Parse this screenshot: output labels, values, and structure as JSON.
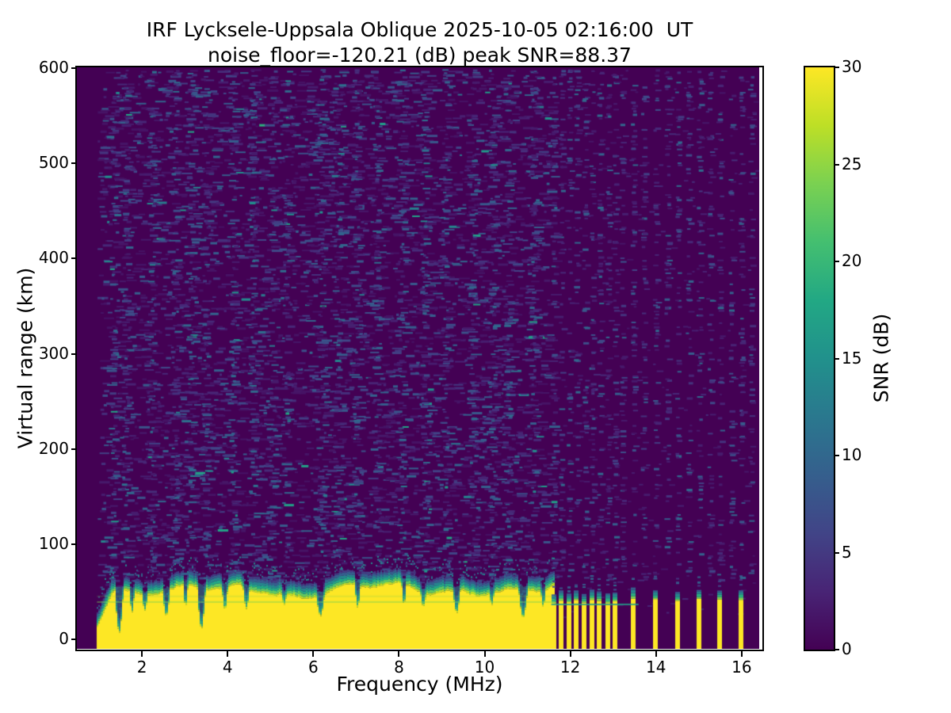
{
  "figure": {
    "title": "IRF Lycksele-Uppsala Oblique 2025-10-05 02:16:00  UT",
    "subtitle": "noise_floor=-120.21 (dB) peak SNR=88.37",
    "background": "#ffffff"
  },
  "chart_data": {
    "type": "heatmap",
    "title": "IRF Lycksele-Uppsala Oblique 2025-10-05 02:16:00  UT",
    "subtitle": "noise_floor=-120.21 (dB) peak SNR=88.37",
    "xlabel": "Frequency (MHz)",
    "ylabel": "Virtual range (km)",
    "x_range": [
      0.48,
      16.48
    ],
    "x_data_max": 16.41,
    "y_range": [
      -10,
      601
    ],
    "x_ticks": [
      2,
      4,
      6,
      8,
      10,
      12,
      14,
      16
    ],
    "y_ticks": [
      0,
      100,
      200,
      300,
      400,
      500,
      600
    ],
    "grid": false,
    "noise_floor_db": -120.21,
    "peak_snr_db": 88.37,
    "colorbar": {
      "label": "SNR (dB)",
      "vmin": 0,
      "vmax": 30,
      "ticks": [
        0,
        5,
        10,
        15,
        20,
        25,
        30
      ],
      "colormap": "viridis",
      "position": "right"
    },
    "viridis_stops": [
      "#440154",
      "#482475",
      "#414487",
      "#355f8d",
      "#2a788e",
      "#21918c",
      "#22a884",
      "#44bf70",
      "#7ad151",
      "#bddf26",
      "#fde725"
    ],
    "ground_echo_band": {
      "f_start_mhz": 0.95,
      "f_end_mhz": 11.63,
      "bottom_km": -10,
      "top_km_base": 49,
      "fringe_km": 13,
      "notches": [
        {
          "f": 1.45,
          "w": 0.1,
          "top": 6
        },
        {
          "f": 1.75,
          "w": 0.06,
          "top": 28
        },
        {
          "f": 2.05,
          "w": 0.07,
          "top": 30
        },
        {
          "f": 2.55,
          "w": 0.09,
          "top": 24
        },
        {
          "f": 3.0,
          "w": 0.06,
          "top": 34
        },
        {
          "f": 3.37,
          "w": 0.1,
          "top": 10
        },
        {
          "f": 3.92,
          "w": 0.07,
          "top": 30
        },
        {
          "f": 4.42,
          "w": 0.08,
          "top": 32
        },
        {
          "f": 5.3,
          "w": 0.06,
          "top": 36
        },
        {
          "f": 6.15,
          "w": 0.1,
          "top": 24
        },
        {
          "f": 7.02,
          "w": 0.07,
          "top": 33
        },
        {
          "f": 8.1,
          "w": 0.06,
          "top": 36
        },
        {
          "f": 8.55,
          "w": 0.07,
          "top": 34
        },
        {
          "f": 9.33,
          "w": 0.09,
          "top": 27
        },
        {
          "f": 10.15,
          "w": 0.06,
          "top": 36
        },
        {
          "f": 10.88,
          "w": 0.11,
          "top": 22
        },
        {
          "f": 11.35,
          "w": 0.06,
          "top": 34
        }
      ]
    },
    "rfi_stripes_mhz": [
      11.61,
      11.78,
      11.97,
      12.14,
      12.33,
      12.5,
      12.68,
      12.87,
      13.04,
      13.46,
      13.98,
      14.5,
      15.0,
      15.48,
      15.98
    ],
    "stripe_top_km": 40,
    "stripe_fringe_km": 14,
    "echo_line_km": 40,
    "cluster_line_km": 37.5,
    "cluster_line_f_end": 13.52,
    "noise_streak_freqs_mhz": [
      1.3,
      1.6,
      2.2,
      2.75,
      3.1,
      3.45,
      4.1,
      4.55,
      5.0,
      5.35,
      6.15,
      6.5,
      7.0,
      7.45,
      8.05,
      8.55,
      9.05,
      9.7,
      10.15,
      10.5,
      11.1
    ],
    "right_noise_columns_mhz": [
      11.61,
      11.78,
      11.97,
      12.14,
      12.33,
      12.5,
      12.68,
      12.87,
      13.04,
      13.2,
      13.46,
      13.7,
      13.98,
      14.25,
      14.5,
      14.75,
      15.0,
      15.25,
      15.48,
      15.75,
      15.98,
      16.2
    ],
    "seed": 42
  }
}
